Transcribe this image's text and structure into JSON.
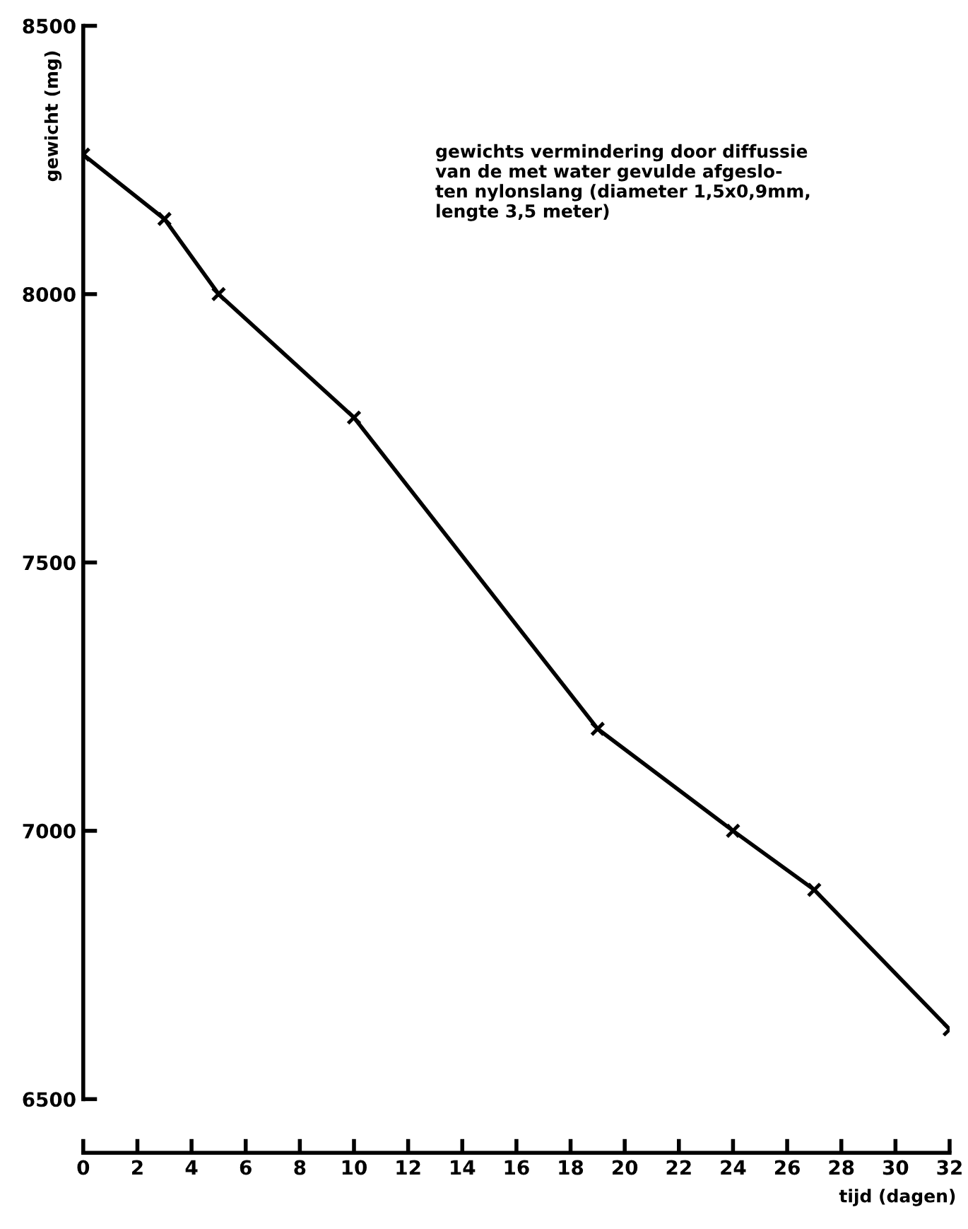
{
  "chart_data": {
    "type": "line",
    "xlabel": "tijd (dagen)",
    "ylabel": "gewicht (mg)",
    "annotations": [
      "gewichts vermindering door diffussie\nvan de met water gevulde afgeslo-\nten nylonslang (diameter 1,5x0,9mm,\nlengte 3,5 meter)"
    ],
    "series": [
      {
        "color": "#000000",
        "x": [
          0,
          3,
          5,
          10,
          19,
          24,
          27,
          32
        ],
        "values": [
          8260,
          8140,
          8000,
          7770,
          7190,
          7000,
          6890,
          6630
        ]
      }
    ],
    "marker": "cross",
    "line_style": "solid",
    "grid": false,
    "legend": false,
    "xlim": [
      0,
      32
    ],
    "xticks": [
      0,
      2,
      4,
      6,
      8,
      10,
      12,
      14,
      16,
      18,
      20,
      22,
      24,
      26,
      28,
      30,
      32
    ],
    "ylim": [
      6400,
      8500
    ],
    "yticks": [
      6500,
      7000,
      7500,
      8000,
      8500
    ]
  }
}
